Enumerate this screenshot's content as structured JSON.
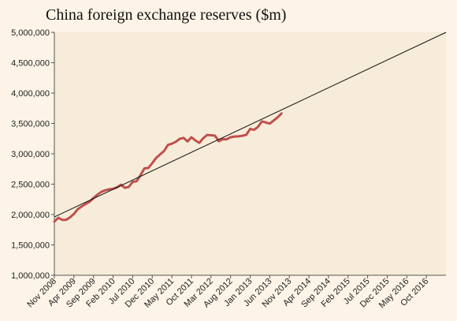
{
  "chart_data": {
    "type": "line",
    "title": "China foreign exchange reserves ($m)",
    "xlabel": "",
    "ylabel": "",
    "ylim": [
      1000000,
      5000000
    ],
    "yticks": [
      1000000,
      1500000,
      2000000,
      2500000,
      3000000,
      3500000,
      4000000,
      4500000,
      5000000
    ],
    "ytick_labels": [
      "1,000,000",
      "1,500,000",
      "2,000,000",
      "2,500,000",
      "3,000,000",
      "3,500,000",
      "4,000,000",
      "4,500,000",
      "5,000,000"
    ],
    "xlim": [
      "Nov 2008",
      "Mar 2017"
    ],
    "xtick_labels": [
      "Nov 2008",
      "Apr 2009",
      "Sep 2009",
      "Feb 2010",
      "Jul 2010",
      "Dec 2010",
      "May 2011",
      "Oct 2011",
      "Mar 2012",
      "Aug 2012",
      "Jan 2013",
      "Jun 2013",
      "Nov 2013",
      "Apr 2014",
      "Sep 2014",
      "Feb 2015",
      "Jul 2015",
      "Dec 2015",
      "May 2016",
      "Oct 2016"
    ],
    "grid": false,
    "legend": "none",
    "colors": {
      "reserves": "#c0504d",
      "trend": "#111111",
      "plot_bg": "#f7ecd9",
      "page_bg": "#fdf3e6"
    },
    "series": [
      {
        "type": "line",
        "x": [
          "Nov 2008",
          "Dec 2008",
          "Jan 2009",
          "Feb 2009",
          "Mar 2009",
          "Apr 2009",
          "May 2009",
          "Jun 2009",
          "Jul 2009",
          "Aug 2009",
          "Sep 2009",
          "Oct 2009",
          "Nov 2009",
          "Dec 2009",
          "Jan 2010",
          "Feb 2010",
          "Mar 2010",
          "Apr 2010",
          "May 2010",
          "Jun 2010",
          "Jul 2010",
          "Aug 2010",
          "Sep 2010",
          "Oct 2010",
          "Nov 2010",
          "Dec 2010",
          "Jan 2011",
          "Feb 2011",
          "Mar 2011",
          "Apr 2011",
          "May 2011",
          "Jun 2011",
          "Jul 2011",
          "Aug 2011",
          "Sep 2011",
          "Oct 2011",
          "Nov 2011",
          "Dec 2011",
          "Jan 2012",
          "Feb 2012",
          "Mar 2012",
          "Apr 2012",
          "May 2012",
          "Jun 2012",
          "Jul 2012",
          "Aug 2012",
          "Sep 2012",
          "Oct 2012",
          "Nov 2012",
          "Dec 2012",
          "Jan 2013",
          "Feb 2013",
          "Mar 2013",
          "Apr 2013",
          "May 2013",
          "Jun 2013",
          "Jul 2013",
          "Aug 2013",
          "Sep 2013"
        ],
        "values": [
          1885000,
          1946000,
          1913000,
          1912000,
          1954000,
          2009000,
          2089000,
          2132000,
          2175000,
          2211000,
          2273000,
          2329000,
          2373000,
          2399000,
          2415000,
          2425000,
          2447000,
          2491000,
          2439000,
          2454000,
          2538000,
          2548000,
          2648000,
          2760000,
          2768000,
          2847000,
          2932000,
          2990000,
          3045000,
          3145000,
          3166000,
          3197000,
          3245000,
          3262000,
          3202000,
          3273000,
          3221000,
          3181000,
          3254000,
          3310000,
          3305000,
          3299000,
          3206000,
          3240000,
          3239000,
          3273000,
          3285000,
          3287000,
          3297000,
          3312000,
          3410000,
          3395000,
          3443000,
          3534000,
          3515000,
          3497000,
          3548000,
          3600000,
          3663000
        ]
      },
      {
        "type": "trendline",
        "x": [
          "Nov 2008",
          "Mar 2017"
        ],
        "values": [
          1960000,
          5000000
        ]
      }
    ]
  }
}
